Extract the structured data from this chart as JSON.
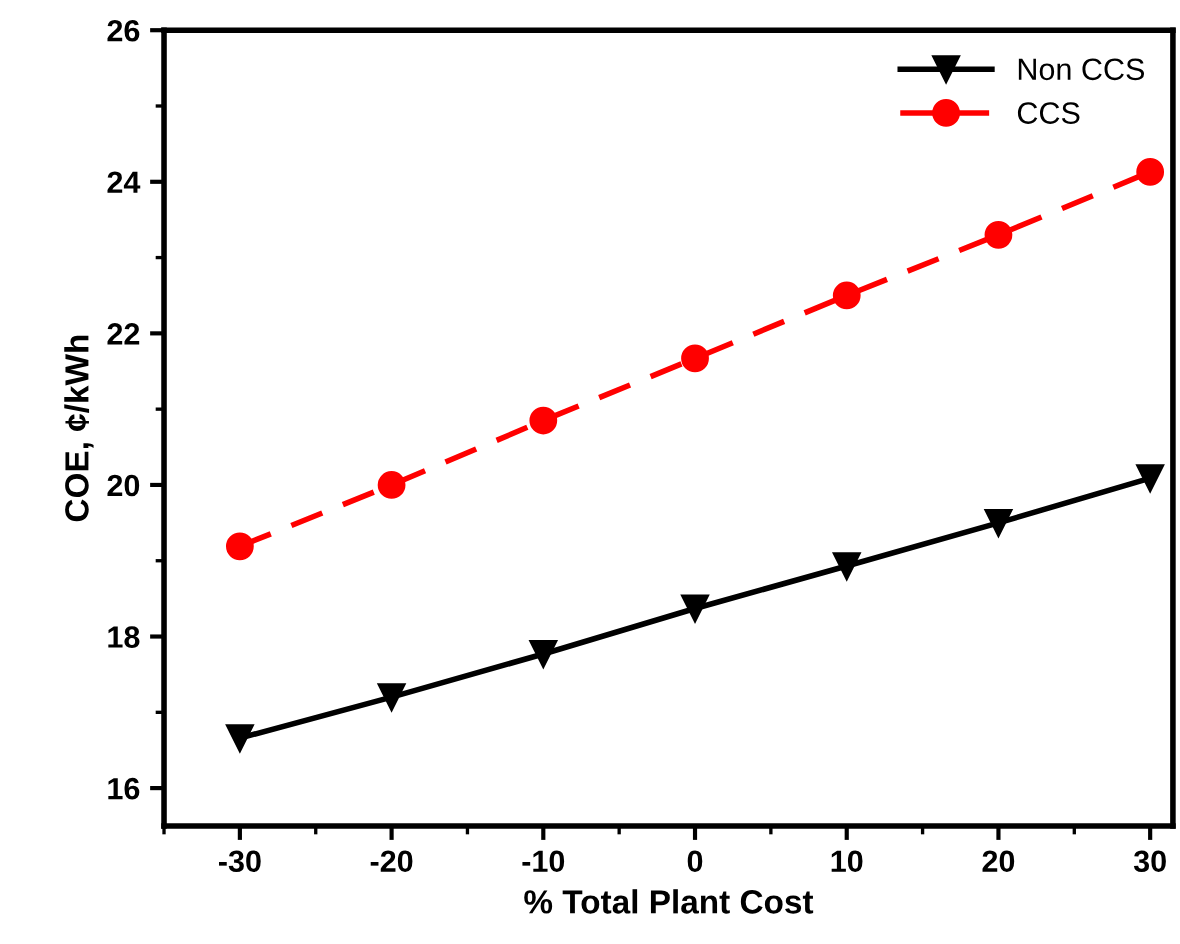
{
  "chart_data": {
    "type": "line",
    "xlabel": "% Total Plant Cost",
    "ylabel": "COE, ¢/kWh",
    "x": [
      -30,
      -20,
      -10,
      0,
      10,
      20,
      30
    ],
    "series": [
      {
        "name": "Non CCS",
        "color": "#000000",
        "marker": "triangle",
        "line_style": "solid",
        "values": [
          16.66,
          17.2,
          17.77,
          18.37,
          18.93,
          19.5,
          20.09
        ]
      },
      {
        "name": "CCS",
        "color": "#ff0000",
        "marker": "circle",
        "line_style": "dashed",
        "values": [
          19.19,
          20.0,
          20.85,
          21.67,
          22.5,
          23.3,
          24.13
        ]
      }
    ],
    "xlim": [
      -35,
      31.5
    ],
    "xticks": [
      -30,
      -20,
      -10,
      0,
      10,
      20,
      30
    ],
    "ylim": [
      15.5,
      26
    ],
    "yticks": [
      16,
      18,
      20,
      22,
      24,
      26
    ],
    "grid": false,
    "legend": "top right"
  }
}
